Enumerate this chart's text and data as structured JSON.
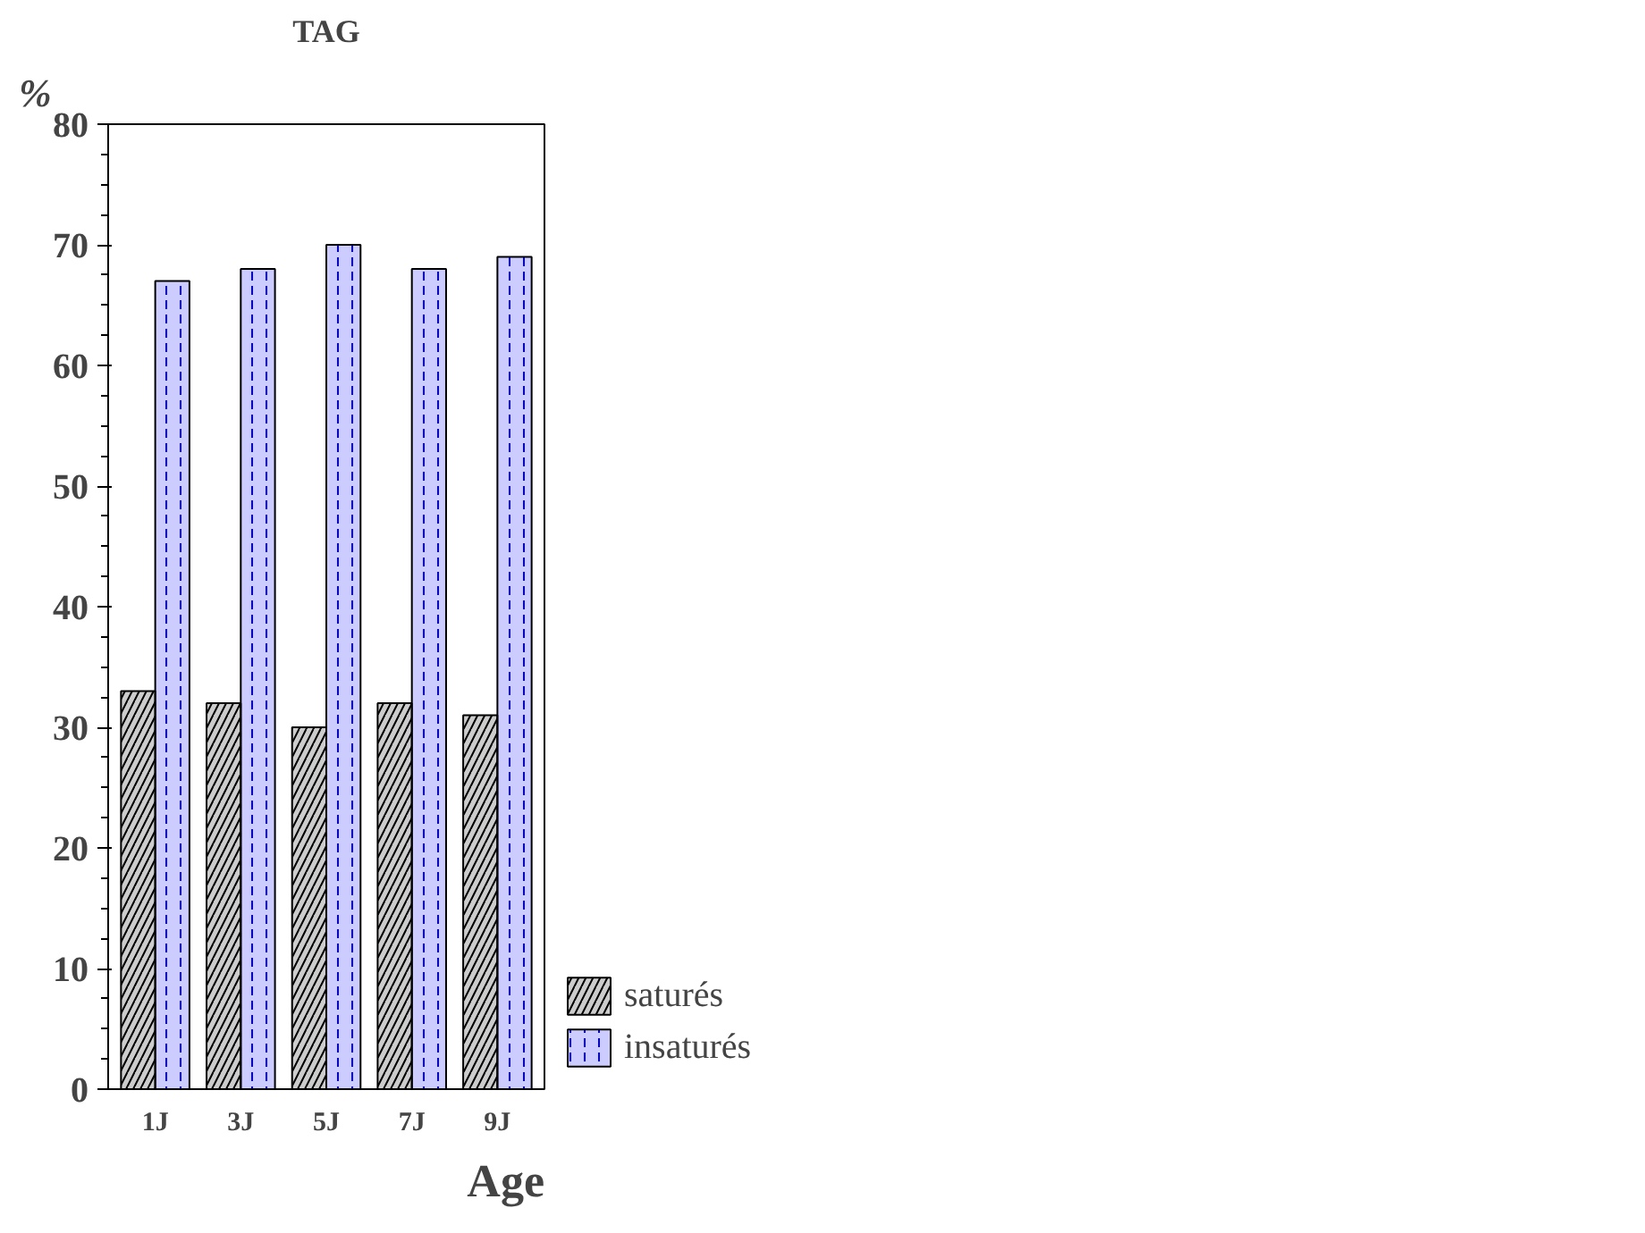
{
  "chart_data": {
    "type": "bar",
    "title": "TAG",
    "xlabel": "Age",
    "ylabel": "%",
    "categories": [
      "1J",
      "3J",
      "5J",
      "7J",
      "9J"
    ],
    "series": [
      {
        "name": "saturés",
        "color": "#000000",
        "values": [
          33,
          32,
          30,
          32,
          31
        ]
      },
      {
        "name": "insaturés",
        "color": "#0000ff",
        "values": [
          67,
          68,
          70,
          68,
          69
        ]
      }
    ],
    "ylim": [
      0,
      80
    ],
    "yticks": [
      0,
      10,
      20,
      30,
      40,
      50,
      60,
      70,
      80
    ],
    "grid": false,
    "legend": "right"
  }
}
